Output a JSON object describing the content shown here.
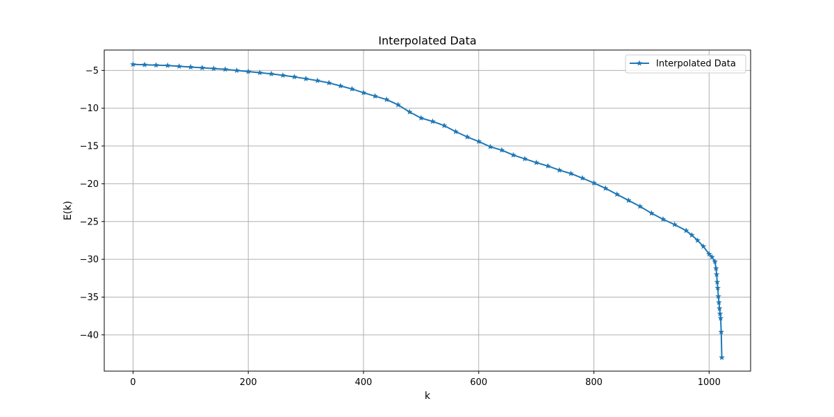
{
  "chart_data": {
    "type": "line",
    "title": "Interpolated Data",
    "xlabel": "k",
    "ylabel": "E(k)",
    "xlim": [
      -50,
      1072
    ],
    "ylim": [
      -44.8,
      -2.3
    ],
    "xticks": [
      0,
      200,
      400,
      600,
      800,
      1000
    ],
    "yticks": [
      -5,
      -10,
      -15,
      -20,
      -25,
      -30,
      -35,
      -40
    ],
    "xtick_labels": [
      "0",
      "200",
      "400",
      "600",
      "800",
      "1000"
    ],
    "ytick_labels": [
      "−5",
      "−10",
      "−15",
      "−20",
      "−25",
      "−30",
      "−35",
      "−40"
    ],
    "grid": true,
    "legend_position": "top-right",
    "marker": "star",
    "series": [
      {
        "name": "Interpolated Data",
        "color": "#1f77b4",
        "points": [
          [
            0,
            -4.2
          ],
          [
            20,
            -4.25
          ],
          [
            40,
            -4.3
          ],
          [
            60,
            -4.35
          ],
          [
            80,
            -4.45
          ],
          [
            100,
            -4.55
          ],
          [
            120,
            -4.65
          ],
          [
            140,
            -4.75
          ],
          [
            160,
            -4.85
          ],
          [
            180,
            -5.0
          ],
          [
            200,
            -5.15
          ],
          [
            220,
            -5.3
          ],
          [
            240,
            -5.45
          ],
          [
            260,
            -5.65
          ],
          [
            280,
            -5.85
          ],
          [
            300,
            -6.1
          ],
          [
            320,
            -6.35
          ],
          [
            340,
            -6.65
          ],
          [
            360,
            -7.05
          ],
          [
            380,
            -7.45
          ],
          [
            400,
            -7.95
          ],
          [
            420,
            -8.4
          ],
          [
            440,
            -8.85
          ],
          [
            460,
            -9.55
          ],
          [
            480,
            -10.5
          ],
          [
            500,
            -11.3
          ],
          [
            520,
            -11.75
          ],
          [
            540,
            -12.3
          ],
          [
            560,
            -13.1
          ],
          [
            580,
            -13.8
          ],
          [
            600,
            -14.4
          ],
          [
            620,
            -15.1
          ],
          [
            640,
            -15.55
          ],
          [
            660,
            -16.2
          ],
          [
            680,
            -16.7
          ],
          [
            700,
            -17.2
          ],
          [
            720,
            -17.65
          ],
          [
            740,
            -18.2
          ],
          [
            760,
            -18.65
          ],
          [
            780,
            -19.25
          ],
          [
            800,
            -19.9
          ],
          [
            820,
            -20.6
          ],
          [
            840,
            -21.4
          ],
          [
            860,
            -22.2
          ],
          [
            880,
            -23.0
          ],
          [
            900,
            -23.9
          ],
          [
            920,
            -24.7
          ],
          [
            940,
            -25.4
          ],
          [
            960,
            -26.2
          ],
          [
            970,
            -26.8
          ],
          [
            980,
            -27.5
          ],
          [
            990,
            -28.3
          ],
          [
            1000,
            -29.3
          ],
          [
            1005,
            -29.7
          ],
          [
            1010,
            -30.3
          ],
          [
            1012,
            -31.2
          ],
          [
            1013,
            -32.0
          ],
          [
            1014,
            -33.0
          ],
          [
            1015,
            -33.8
          ],
          [
            1016,
            -34.9
          ],
          [
            1017,
            -35.7
          ],
          [
            1018,
            -36.5
          ],
          [
            1019,
            -37.2
          ],
          [
            1020,
            -37.8
          ],
          [
            1021,
            -39.6
          ],
          [
            1022,
            -43.0
          ]
        ]
      }
    ]
  }
}
